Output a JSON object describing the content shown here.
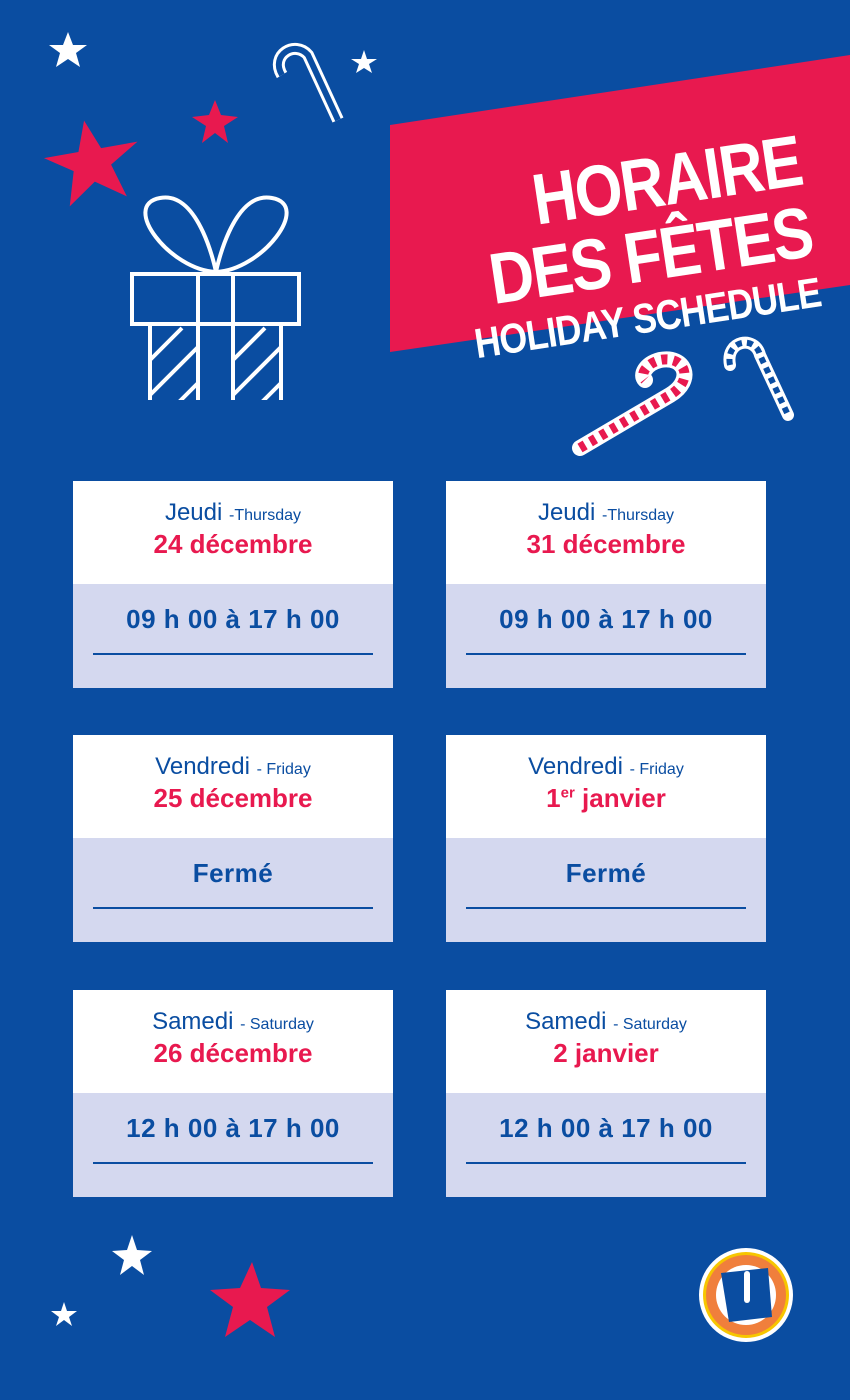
{
  "header": {
    "line1": "HORAIRE",
    "line2": "DES FÊTES",
    "line3": "HOLIDAY SCHEDULE"
  },
  "colors": {
    "background": "#0a4da1",
    "accent": "#e8194f",
    "panel": "#d4d8ef"
  },
  "schedule": [
    {
      "day_fr": "Jeudi",
      "day_en": "-Thursday",
      "date": "24 décembre",
      "hours": "09 h 00 à 17 h 00"
    },
    {
      "day_fr": "Jeudi",
      "day_en": "-Thursday",
      "date": "31 décembre",
      "hours": "09 h 00 à 17 h 00"
    },
    {
      "day_fr": "Vendredi",
      "day_en": "- Friday",
      "date": "25 décembre",
      "hours": "Fermé"
    },
    {
      "day_fr": "Vendredi",
      "day_en": "- Friday",
      "date_num": "1",
      "date_sup": "er",
      "date_rest": " janvier",
      "hours": "Fermé"
    },
    {
      "day_fr": "Samedi",
      "day_en": "- Saturday",
      "date": "26 décembre",
      "hours": "12 h 00 à 17 h 00"
    },
    {
      "day_fr": "Samedi",
      "day_en": "- Saturday",
      "date": "2 janvier",
      "hours": "12 h 00 à 17 h 00"
    }
  ],
  "logo": {
    "letter": "U"
  }
}
